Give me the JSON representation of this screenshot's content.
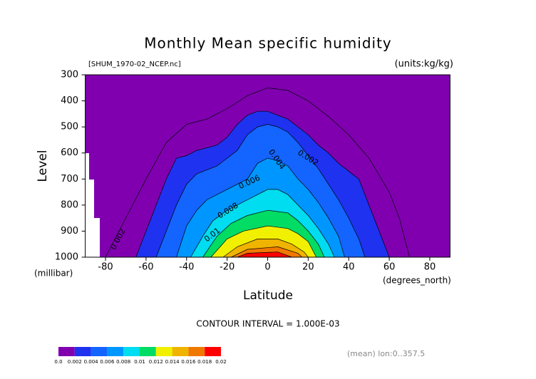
{
  "chart_data": {
    "type": "contour",
    "title": "Monthly Mean specific humidity",
    "subtitle_left": "[SHUM_1970-02_NCEP.nc]",
    "subtitle_right": "(units:kg/kg)",
    "y_label": "Level",
    "y_unit": "(millibar)",
    "x_label": "Latitude",
    "x_unit": "(degrees_north)",
    "note": "CONTOUR INTERVAL = 1.000E-03",
    "footer": "(mean) lon:0..357.5",
    "xlim": [
      -90,
      90
    ],
    "ylim": [
      1000,
      300
    ],
    "xticks": [
      -80,
      -60,
      -40,
      -20,
      0,
      20,
      40,
      60,
      80
    ],
    "yticks": [
      300,
      400,
      500,
      600,
      700,
      800,
      900,
      1000
    ],
    "colorbar": {
      "ticks": [
        {
          "value": 0,
          "label": "0.0"
        },
        0.002,
        0.004,
        0.006,
        0.008,
        0.01,
        0.012,
        0.014,
        0.016,
        0.018,
        0.02
      ],
      "colors": [
        "#8000b0",
        "#1e32f0",
        "#1464ff",
        "#0096ff",
        "#00dcf0",
        "#00dc64",
        "#f0f000",
        "#f0b400",
        "#f07800",
        "#ff0000"
      ]
    },
    "contours": [
      {
        "level": 0.001,
        "lat": [
          -80,
          -70,
          -60,
          -50,
          -40,
          -30,
          -20,
          -10,
          0,
          10,
          20,
          30,
          40,
          50,
          60,
          65,
          70
        ],
        "pressure": [
          1000,
          850,
          700,
          560,
          490,
          470,
          430,
          380,
          350,
          360,
          400,
          460,
          530,
          620,
          750,
          850,
          1000
        ]
      },
      {
        "level": 0.002,
        "lat": [
          -65,
          -60,
          -55,
          -50,
          -45,
          -40,
          -35,
          -25,
          -20,
          -15,
          -10,
          -5,
          0,
          5,
          10,
          15,
          20,
          25,
          30,
          35,
          40,
          45,
          50,
          55,
          60
        ],
        "pressure": [
          1000,
          900,
          800,
          700,
          620,
          610,
          590,
          570,
          540,
          490,
          455,
          440,
          440,
          455,
          470,
          500,
          530,
          570,
          600,
          640,
          670,
          700,
          800,
          900,
          1000
        ]
      },
      {
        "level": 0.004,
        "lat": [
          -55,
          -50,
          -45,
          -40,
          -35,
          -25,
          -15,
          -10,
          -5,
          0,
          5,
          10,
          15,
          20,
          25,
          30,
          35,
          40,
          45,
          48
        ],
        "pressure": [
          1000,
          900,
          800,
          720,
          680,
          650,
          590,
          530,
          500,
          490,
          500,
          520,
          560,
          610,
          660,
          720,
          780,
          850,
          930,
          1000
        ]
      },
      {
        "level": 0.006,
        "lat": [
          -45,
          -40,
          -35,
          -30,
          -20,
          -10,
          -5,
          0,
          5,
          10,
          15,
          20,
          25,
          30,
          35,
          38
        ],
        "pressure": [
          1000,
          880,
          820,
          780,
          740,
          700,
          640,
          620,
          630,
          650,
          700,
          740,
          790,
          850,
          920,
          1000
        ]
      },
      {
        "level": 0.008,
        "lat": [
          -38,
          -32,
          -27,
          -20,
          -10,
          0,
          5,
          10,
          15,
          20,
          25,
          30,
          33
        ],
        "pressure": [
          1000,
          920,
          860,
          820,
          780,
          740,
          740,
          760,
          800,
          840,
          890,
          950,
          1000
        ]
      },
      {
        "level": 0.01,
        "lat": [
          -32,
          -25,
          -18,
          -10,
          0,
          10,
          15,
          20,
          25,
          28
        ],
        "pressure": [
          1000,
          920,
          870,
          840,
          820,
          830,
          860,
          900,
          950,
          1000
        ]
      },
      {
        "level": 0.012,
        "lat": [
          -28,
          -20,
          -12,
          0,
          10,
          15,
          20,
          24
        ],
        "pressure": [
          1000,
          930,
          900,
          880,
          890,
          910,
          940,
          1000
        ]
      },
      {
        "level": 0.014,
        "lat": [
          -22,
          -15,
          -5,
          5,
          12,
          18,
          20
        ],
        "pressure": [
          1000,
          960,
          930,
          930,
          950,
          980,
          1000
        ]
      },
      {
        "level": 0.016,
        "lat": [
          -18,
          -10,
          5,
          15,
          17
        ],
        "pressure": [
          1000,
          970,
          960,
          985,
          1000
        ]
      },
      {
        "level": 0.018,
        "lat": [
          -15,
          -10,
          5,
          12
        ],
        "pressure": [
          1000,
          985,
          980,
          1000
        ]
      }
    ],
    "contour_labels": [
      "0.002",
      "0.004",
      "0.006",
      "0.008",
      "0.01",
      "0.002"
    ]
  }
}
